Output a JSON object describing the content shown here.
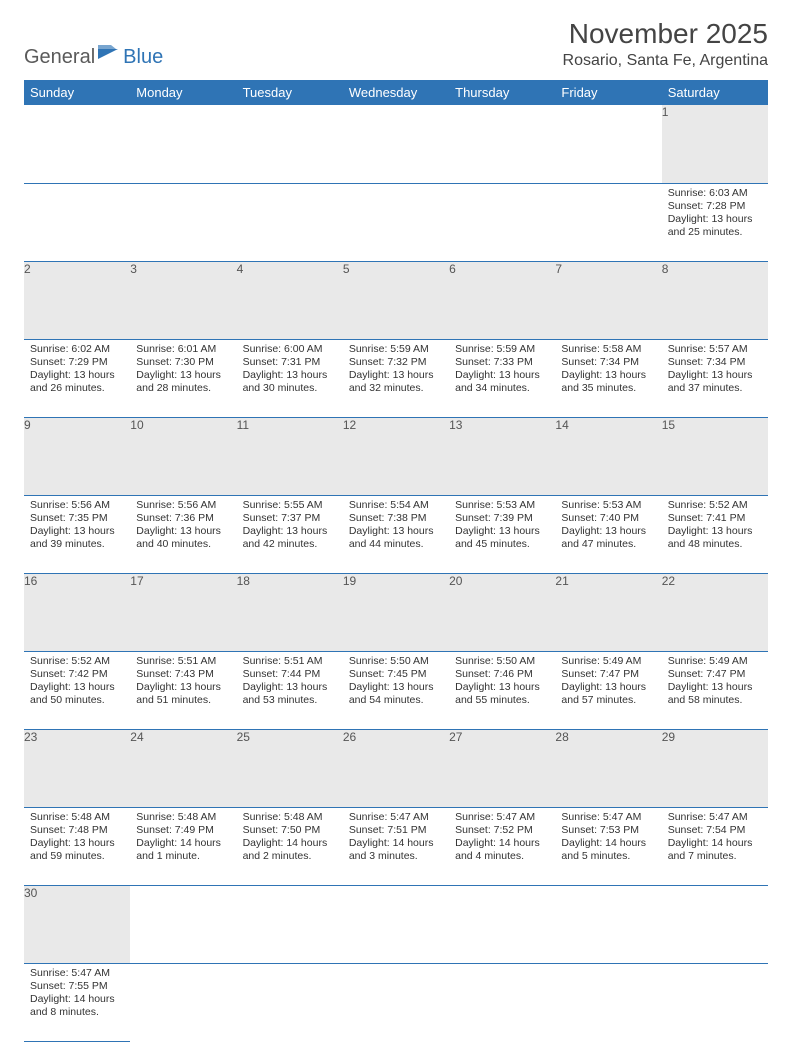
{
  "logo": {
    "part1": "General",
    "part2": "Blue"
  },
  "title": "November 2025",
  "subtitle": "Rosario, Santa Fe, Argentina",
  "colors": {
    "header_bg": "#2f74b5",
    "header_text": "#ffffff",
    "daynum_bg": "#e9e9e9",
    "border": "#2f74b5",
    "body_text": "#333333",
    "logo_gray": "#5a5a5a",
    "logo_blue": "#2f74b5"
  },
  "weekdays": [
    "Sunday",
    "Monday",
    "Tuesday",
    "Wednesday",
    "Thursday",
    "Friday",
    "Saturday"
  ],
  "weeks": [
    [
      null,
      null,
      null,
      null,
      null,
      null,
      {
        "n": "1",
        "sunrise": "6:03 AM",
        "sunset": "7:28 PM",
        "daylight": "13 hours and 25 minutes."
      }
    ],
    [
      {
        "n": "2",
        "sunrise": "6:02 AM",
        "sunset": "7:29 PM",
        "daylight": "13 hours and 26 minutes."
      },
      {
        "n": "3",
        "sunrise": "6:01 AM",
        "sunset": "7:30 PM",
        "daylight": "13 hours and 28 minutes."
      },
      {
        "n": "4",
        "sunrise": "6:00 AM",
        "sunset": "7:31 PM",
        "daylight": "13 hours and 30 minutes."
      },
      {
        "n": "5",
        "sunrise": "5:59 AM",
        "sunset": "7:32 PM",
        "daylight": "13 hours and 32 minutes."
      },
      {
        "n": "6",
        "sunrise": "5:59 AM",
        "sunset": "7:33 PM",
        "daylight": "13 hours and 34 minutes."
      },
      {
        "n": "7",
        "sunrise": "5:58 AM",
        "sunset": "7:34 PM",
        "daylight": "13 hours and 35 minutes."
      },
      {
        "n": "8",
        "sunrise": "5:57 AM",
        "sunset": "7:34 PM",
        "daylight": "13 hours and 37 minutes."
      }
    ],
    [
      {
        "n": "9",
        "sunrise": "5:56 AM",
        "sunset": "7:35 PM",
        "daylight": "13 hours and 39 minutes."
      },
      {
        "n": "10",
        "sunrise": "5:56 AM",
        "sunset": "7:36 PM",
        "daylight": "13 hours and 40 minutes."
      },
      {
        "n": "11",
        "sunrise": "5:55 AM",
        "sunset": "7:37 PM",
        "daylight": "13 hours and 42 minutes."
      },
      {
        "n": "12",
        "sunrise": "5:54 AM",
        "sunset": "7:38 PM",
        "daylight": "13 hours and 44 minutes."
      },
      {
        "n": "13",
        "sunrise": "5:53 AM",
        "sunset": "7:39 PM",
        "daylight": "13 hours and 45 minutes."
      },
      {
        "n": "14",
        "sunrise": "5:53 AM",
        "sunset": "7:40 PM",
        "daylight": "13 hours and 47 minutes."
      },
      {
        "n": "15",
        "sunrise": "5:52 AM",
        "sunset": "7:41 PM",
        "daylight": "13 hours and 48 minutes."
      }
    ],
    [
      {
        "n": "16",
        "sunrise": "5:52 AM",
        "sunset": "7:42 PM",
        "daylight": "13 hours and 50 minutes."
      },
      {
        "n": "17",
        "sunrise": "5:51 AM",
        "sunset": "7:43 PM",
        "daylight": "13 hours and 51 minutes."
      },
      {
        "n": "18",
        "sunrise": "5:51 AM",
        "sunset": "7:44 PM",
        "daylight": "13 hours and 53 minutes."
      },
      {
        "n": "19",
        "sunrise": "5:50 AM",
        "sunset": "7:45 PM",
        "daylight": "13 hours and 54 minutes."
      },
      {
        "n": "20",
        "sunrise": "5:50 AM",
        "sunset": "7:46 PM",
        "daylight": "13 hours and 55 minutes."
      },
      {
        "n": "21",
        "sunrise": "5:49 AM",
        "sunset": "7:47 PM",
        "daylight": "13 hours and 57 minutes."
      },
      {
        "n": "22",
        "sunrise": "5:49 AM",
        "sunset": "7:47 PM",
        "daylight": "13 hours and 58 minutes."
      }
    ],
    [
      {
        "n": "23",
        "sunrise": "5:48 AM",
        "sunset": "7:48 PM",
        "daylight": "13 hours and 59 minutes."
      },
      {
        "n": "24",
        "sunrise": "5:48 AM",
        "sunset": "7:49 PM",
        "daylight": "14 hours and 1 minute."
      },
      {
        "n": "25",
        "sunrise": "5:48 AM",
        "sunset": "7:50 PM",
        "daylight": "14 hours and 2 minutes."
      },
      {
        "n": "26",
        "sunrise": "5:47 AM",
        "sunset": "7:51 PM",
        "daylight": "14 hours and 3 minutes."
      },
      {
        "n": "27",
        "sunrise": "5:47 AM",
        "sunset": "7:52 PM",
        "daylight": "14 hours and 4 minutes."
      },
      {
        "n": "28",
        "sunrise": "5:47 AM",
        "sunset": "7:53 PM",
        "daylight": "14 hours and 5 minutes."
      },
      {
        "n": "29",
        "sunrise": "5:47 AM",
        "sunset": "7:54 PM",
        "daylight": "14 hours and 7 minutes."
      }
    ],
    [
      {
        "n": "30",
        "sunrise": "5:47 AM",
        "sunset": "7:55 PM",
        "daylight": "14 hours and 8 minutes."
      },
      null,
      null,
      null,
      null,
      null,
      null
    ]
  ],
  "labels": {
    "sunrise": "Sunrise: ",
    "sunset": "Sunset: ",
    "daylight": "Daylight: "
  }
}
